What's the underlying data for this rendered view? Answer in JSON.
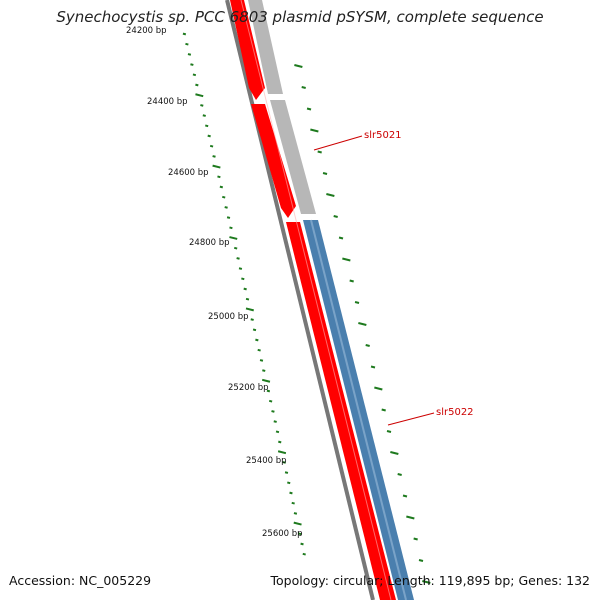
{
  "title": "Synechocystis sp. PCC 6803 plasmid pSYSM, complete sequence",
  "footer": {
    "accession": "Accession: NC_005229",
    "summary": "Topology: circular; Length: 119,895 bp; Genes: 132"
  },
  "tick_labels": [
    "24200 bp",
    "24400 bp",
    "24600 bp",
    "24800 bp",
    "25000 bp",
    "25200 bp",
    "25400 bp",
    "25600 bp"
  ],
  "gene_labels": [
    "slr5021",
    "slr5022"
  ],
  "colors": {
    "cds_forward": "#ff0000",
    "cds_grey": "#b7b7b7",
    "cds_blue": "#4a7fae",
    "backbone": "#777777",
    "ticks": "#1e7a1e",
    "gene_label": "#cc0000"
  }
}
